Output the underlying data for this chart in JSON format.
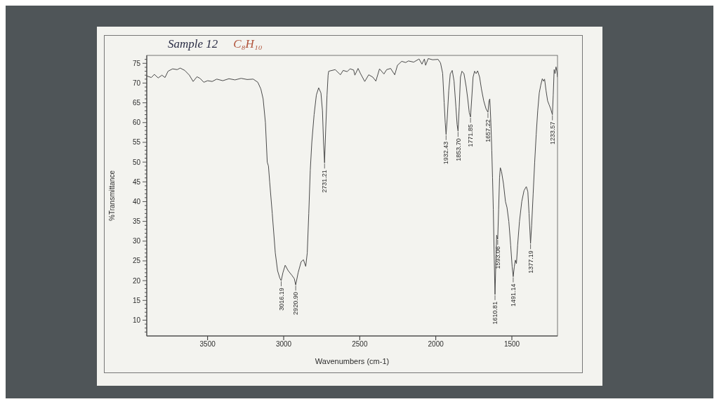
{
  "chart_data": {
    "type": "line",
    "title": "Sample 12",
    "subtitle": "C₈H₁₀",
    "xlabel": "Wavenumbers (cm-1)",
    "ylabel": "%Transmittance",
    "x": [
      3900,
      3870,
      3850,
      3825,
      3800,
      3780,
      3760,
      3730,
      3700,
      3680,
      3650,
      3620,
      3595,
      3570,
      3550,
      3525,
      3500,
      3470,
      3440,
      3400,
      3360,
      3320,
      3280,
      3240,
      3200,
      3170,
      3150,
      3135,
      3120,
      3108,
      3100,
      3092,
      3075,
      3055,
      3040,
      3025,
      3016.19,
      3005,
      2990,
      2970,
      2945,
      2930,
      2920.9,
      2905,
      2885,
      2870,
      2855,
      2845,
      2835,
      2825,
      2815,
      2800,
      2785,
      2770,
      2755,
      2745,
      2738,
      2731.21,
      2724,
      2715,
      2708,
      2704,
      2661,
      2627,
      2609,
      2583,
      2563,
      2540,
      2532,
      2511,
      2495,
      2467,
      2441,
      2414,
      2394,
      2370,
      2341,
      2323,
      2297,
      2270,
      2252,
      2224,
      2198,
      2180,
      2145,
      2110,
      2091,
      2075,
      2067,
      2050,
      2021,
      1985,
      1969,
      1955,
      1945,
      1938,
      1932.43,
      1925,
      1915,
      1905,
      1892,
      1880,
      1868,
      1860,
      1853.7,
      1846,
      1838,
      1828,
      1815,
      1800,
      1790,
      1780,
      1771.85,
      1764,
      1755,
      1745,
      1735,
      1725,
      1712,
      1700,
      1685,
      1670,
      1657.22,
      1650,
      1645,
      1638,
      1632,
      1627,
      1622,
      1617,
      1613,
      1610.81,
      1605,
      1600,
      1593.06,
      1587,
      1581,
      1576,
      1568,
      1555,
      1542,
      1532,
      1520,
      1508,
      1498,
      1491.14,
      1484,
      1477,
      1470,
      1462,
      1450,
      1435,
      1420,
      1405,
      1395,
      1387,
      1377.19,
      1370,
      1360,
      1350,
      1340,
      1330,
      1320,
      1310,
      1300,
      1292,
      1285,
      1275,
      1265,
      1255,
      1245,
      1233.57,
      1228,
      1222,
      1216,
      1210,
      1204,
      1200
    ],
    "values": [
      71.8,
      71.4,
      72.2,
      71.3,
      72.0,
      71.4,
      73.0,
      73.6,
      73.4,
      73.8,
      73.2,
      72.0,
      70.4,
      71.6,
      71.2,
      70.2,
      70.6,
      70.4,
      71.0,
      70.6,
      71.1,
      70.8,
      71.2,
      70.9,
      71.0,
      70.2,
      68.5,
      66.0,
      60.0,
      50.0,
      49.0,
      45.0,
      37.0,
      27.0,
      22.5,
      20.6,
      20.0,
      22.0,
      23.9,
      22.5,
      21.3,
      20.5,
      18.9,
      22.0,
      24.8,
      25.3,
      23.6,
      27.0,
      37.0,
      48.0,
      55.0,
      62.0,
      67.0,
      68.8,
      67.5,
      63.0,
      55.0,
      49.8,
      58.0,
      67.0,
      72.0,
      73.0,
      73.4,
      72.1,
      73.2,
      72.9,
      73.6,
      73.3,
      72.0,
      73.7,
      72.4,
      70.4,
      72.1,
      71.5,
      70.5,
      73.6,
      72.3,
      73.4,
      73.7,
      72.1,
      74.5,
      75.5,
      75.2,
      75.6,
      75.3,
      76.1,
      74.8,
      76.1,
      74.5,
      76.2,
      75.9,
      76.0,
      75.1,
      72.5,
      65.0,
      60.0,
      57.0,
      61.0,
      68.0,
      72.3,
      73.2,
      70.5,
      64.0,
      59.5,
      57.8,
      64.0,
      71.5,
      73.0,
      72.4,
      69.0,
      66.0,
      62.5,
      61.4,
      66.0,
      71.5,
      73.0,
      72.4,
      73.1,
      71.5,
      68.5,
      65.5,
      63.5,
      62.6,
      65.5,
      66.0,
      60.0,
      53.0,
      46.0,
      38.0,
      28.0,
      20.0,
      16.5,
      25.0,
      31.5,
      30.5,
      38.0,
      46.0,
      48.6,
      47.6,
      44.5,
      40.0,
      38.5,
      35.0,
      29.0,
      23.5,
      21.0,
      23.5,
      25.2,
      24.3,
      29.0,
      35.0,
      40.0,
      42.8,
      43.8,
      42.5,
      37.0,
      29.4,
      34.0,
      42.0,
      50.0,
      57.0,
      63.0,
      67.5,
      69.5,
      71.1,
      70.5,
      71.0,
      68.0,
      65.5,
      64.5,
      63.5,
      62.0,
      67.0,
      73.4,
      72.4,
      74.1,
      73.0,
      71.5
    ],
    "color": "#4a4a4a",
    "xlim": [
      3900,
      1200
    ],
    "ylim": [
      6,
      77
    ],
    "xticks": [
      3500,
      3000,
      2500,
      2000,
      1500
    ],
    "yticks": [
      {
        "value": 7,
        "label": null
      },
      {
        "value": 8,
        "label": null
      },
      {
        "value": 9,
        "label": null
      },
      10,
      {
        "value": 11,
        "label": null
      },
      {
        "value": 12,
        "label": null
      },
      {
        "value": 13,
        "label": null
      },
      {
        "value": 14,
        "label": null
      },
      15,
      {
        "value": 16,
        "label": null
      },
      {
        "value": 17,
        "label": null
      },
      {
        "value": 18,
        "label": null
      },
      {
        "value": 19,
        "label": null
      },
      20,
      {
        "value": 21,
        "label": null
      },
      {
        "value": 22,
        "label": null
      },
      {
        "value": 23,
        "label": null
      },
      {
        "value": 24,
        "label": null
      },
      25,
      {
        "value": 26,
        "label": null
      },
      {
        "value": 27,
        "label": null
      },
      {
        "value": 28,
        "label": null
      },
      {
        "value": 29,
        "label": null
      },
      30,
      {
        "value": 31,
        "label": null
      },
      {
        "value": 32,
        "label": null
      },
      {
        "value": 33,
        "label": null
      },
      {
        "value": 34,
        "label": null
      },
      35,
      {
        "value": 36,
        "label": null
      },
      {
        "value": 37,
        "label": null
      },
      {
        "value": 38,
        "label": null
      },
      {
        "value": 39,
        "label": null
      },
      40,
      {
        "value": 41,
        "label": null
      },
      {
        "value": 42,
        "label": null
      },
      {
        "value": 43,
        "label": null
      },
      {
        "value": 44,
        "label": null
      },
      45,
      {
        "value": 46,
        "label": null
      },
      {
        "value": 47,
        "label": null
      },
      {
        "value": 48,
        "label": null
      },
      {
        "value": 49,
        "label": null
      },
      50,
      {
        "value": 51,
        "label": null
      },
      {
        "value": 52,
        "label": null
      },
      {
        "value": 53,
        "label": null
      },
      {
        "value": 54,
        "label": null
      },
      55,
      {
        "value": 56,
        "label": null
      },
      {
        "value": 57,
        "label": null
      },
      {
        "value": 58,
        "label": null
      },
      {
        "value": 59,
        "label": null
      },
      60,
      {
        "value": 61,
        "label": null
      },
      {
        "value": 62,
        "label": null
      },
      {
        "value": 63,
        "label": null
      },
      {
        "value": 64,
        "label": null
      },
      65,
      {
        "value": 66,
        "label": null
      },
      {
        "value": 67,
        "label": null
      },
      {
        "value": 68,
        "label": null
      },
      {
        "value": 69,
        "label": null
      },
      70,
      {
        "value": 71,
        "label": null
      },
      {
        "value": 72,
        "label": null
      },
      {
        "value": 73,
        "label": null
      },
      {
        "value": 74,
        "label": null
      },
      75,
      {
        "value": 76,
        "label": null
      }
    ],
    "annotations": [
      {
        "text": "3016.19",
        "x": 3016.19,
        "y": 20.0
      },
      {
        "text": "2920.90",
        "x": 2920.9,
        "y": 18.9
      },
      {
        "text": "2731.21",
        "x": 2731.21,
        "y": 49.8
      },
      {
        "text": "1932.43",
        "x": 1932.43,
        "y": 57.0
      },
      {
        "text": "1853.70",
        "x": 1853.7,
        "y": 57.8
      },
      {
        "text": "1771.85",
        "x": 1771.85,
        "y": 61.4
      },
      {
        "text": "1657.22",
        "x": 1657.22,
        "y": 62.6
      },
      {
        "text": "1610.81",
        "x": 1610.81,
        "y": 16.5
      },
      {
        "text": "1593.06",
        "x": 1593.06,
        "y": 30.5
      },
      {
        "text": "1491.14",
        "x": 1491.14,
        "y": 21.0
      },
      {
        "text": "1377.19",
        "x": 1377.19,
        "y": 29.4
      },
      {
        "text": "1233.57",
        "x": 1233.57,
        "y": 62.0
      }
    ]
  }
}
